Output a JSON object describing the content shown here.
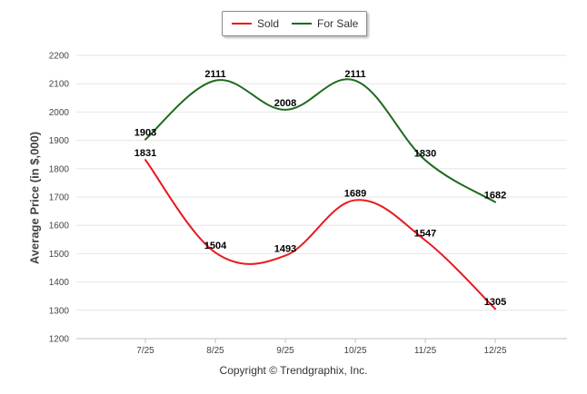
{
  "chart_data": {
    "type": "line",
    "title": "",
    "xlabel": "",
    "ylabel": "Average Price (in $,000)",
    "categories": [
      "7/25",
      "8/25",
      "9/25",
      "10/25",
      "11/25",
      "12/25"
    ],
    "ylim": [
      1200,
      2200
    ],
    "yticks": [
      1200,
      1300,
      1400,
      1500,
      1600,
      1700,
      1800,
      1900,
      2000,
      2100,
      2200
    ],
    "grid": true,
    "legend_position": "top-center",
    "series": [
      {
        "name": "Sold",
        "color": "#e8191e",
        "values": [
          1831,
          1504,
          1493,
          1689,
          1547,
          1305
        ]
      },
      {
        "name": "For Sale",
        "color": "#1e6b1e",
        "values": [
          1903,
          2111,
          2008,
          2111,
          1830,
          1682
        ]
      }
    ]
  },
  "footer": {
    "copyright": "Copyright © Trendgraphix, Inc."
  }
}
